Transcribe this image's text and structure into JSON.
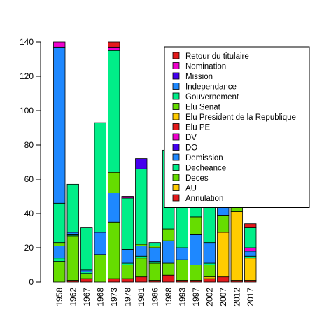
{
  "chart_data": {
    "type": "bar",
    "stacked": true,
    "title": "",
    "xlabel": "",
    "ylabel": "",
    "ylim": [
      0,
      140
    ],
    "y_ticks": [
      0,
      20,
      40,
      60,
      80,
      100,
      120,
      140
    ],
    "categories": [
      "1958",
      "1962",
      "1967",
      "1968",
      "1973",
      "1978",
      "1981",
      "1986",
      "1988",
      "1993",
      "1997",
      "2002",
      "2007",
      "2012",
      "2017"
    ],
    "legend_position": "top-right",
    "series": [
      {
        "name": "Annulation",
        "color": "#e41a1c",
        "values": [
          0,
          1,
          2,
          0,
          2,
          2,
          3,
          1,
          4,
          1,
          1,
          2,
          3,
          1,
          1
        ]
      },
      {
        "name": "AU",
        "color": "#ffcc00",
        "values": [
          0,
          0,
          0,
          0,
          0,
          0,
          0,
          0,
          0,
          0,
          0,
          1,
          26,
          40,
          13
        ]
      },
      {
        "name": "Deces",
        "color": "#66dd00",
        "values": [
          12,
          26,
          3,
          16,
          33,
          8,
          11,
          10,
          7,
          12,
          9,
          7,
          10,
          3,
          0
        ]
      },
      {
        "name": "Decheance",
        "color": "#00ee88",
        "values": [
          2,
          1,
          1,
          0,
          0,
          1,
          1,
          1,
          0,
          0,
          0,
          1,
          0,
          0,
          1
        ]
      },
      {
        "name": "Demission",
        "color": "#1e88ff",
        "values": [
          7,
          1,
          1,
          13,
          17,
          8,
          6,
          8,
          13,
          7,
          18,
          12,
          5,
          0,
          3
        ]
      },
      {
        "name": "DO",
        "color": "#4400ee",
        "values": [
          0,
          0,
          0,
          0,
          0,
          0,
          0,
          0,
          0,
          0,
          0,
          0,
          0,
          0,
          0
        ]
      },
      {
        "name": "DV",
        "color": "#ee00cc",
        "values": [
          0,
          0,
          0,
          0,
          0,
          0,
          0,
          0,
          0,
          0,
          0,
          0,
          0,
          0,
          2
        ]
      },
      {
        "name": "Elu PE",
        "color": "#e41a1c",
        "values": [
          0,
          0,
          0,
          0,
          0,
          0,
          0,
          0,
          0,
          0,
          0,
          0,
          0,
          0,
          0
        ]
      },
      {
        "name": "Elu President de la Republique",
        "color": "#ffcc00",
        "values": [
          0,
          0,
          0,
          0,
          0,
          0,
          0,
          0,
          0,
          0,
          0,
          0,
          0,
          0,
          0
        ]
      },
      {
        "name": "Elu Senat",
        "color": "#66dd00",
        "values": [
          2,
          0,
          0,
          0,
          12,
          0,
          1,
          1,
          7,
          0,
          10,
          0,
          0,
          0,
          0
        ]
      },
      {
        "name": "Gouvernement",
        "color": "#00ee88",
        "values": [
          23,
          28,
          25,
          64,
          71,
          30,
          44,
          2,
          46,
          60,
          47,
          34,
          20,
          7,
          12
        ]
      },
      {
        "name": "Independance",
        "color": "#1e88ff",
        "values": [
          91,
          0,
          0,
          0,
          0,
          0,
          0,
          0,
          0,
          0,
          0,
          0,
          0,
          0,
          0
        ]
      },
      {
        "name": "Mission",
        "color": "#4400ee",
        "values": [
          0,
          0,
          0,
          0,
          0,
          0,
          6,
          0,
          0,
          0,
          0,
          0,
          0,
          0,
          0
        ]
      },
      {
        "name": "Nomination",
        "color": "#ee00cc",
        "values": [
          3,
          0,
          0,
          0,
          2,
          1,
          0,
          0,
          0,
          0,
          0,
          0,
          0,
          0,
          0
        ]
      },
      {
        "name": "Retour du titulaire",
        "color": "#e41a1c",
        "values": [
          0,
          0,
          0,
          0,
          3,
          0,
          0,
          0,
          0,
          0,
          0,
          0,
          0,
          0,
          2
        ]
      }
    ]
  }
}
